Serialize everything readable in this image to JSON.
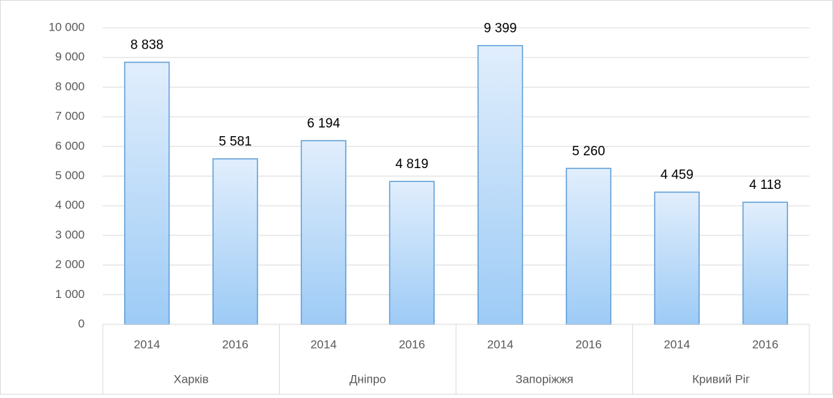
{
  "chart_data": {
    "type": "bar",
    "categories": [
      "2014",
      "2016",
      "2014",
      "2016",
      "2014",
      "2016",
      "2014",
      "2016"
    ],
    "groups": [
      "Харків",
      "Дніпро",
      "Запоріжжя",
      "Кривий Ріг"
    ],
    "values": [
      8838,
      5581,
      6194,
      4819,
      9399,
      5260,
      4459,
      4118
    ],
    "value_labels": [
      "8 838",
      "5 581",
      "6 194",
      "4 819",
      "9 399",
      "5 260",
      "4 459",
      "4 118"
    ],
    "color": "#5b9bd5",
    "ylim": [
      0,
      10000
    ],
    "yticks": [
      0,
      {
        "value": 1000,
        "label": "1 000"
      },
      {
        "value": 2000,
        "label": "2 000"
      },
      {
        "value": 3000,
        "label": "3 000"
      },
      {
        "value": 4000,
        "label": "4 000"
      },
      {
        "value": 5000,
        "label": "5 000"
      },
      {
        "value": 6000,
        "label": "6 000"
      },
      {
        "value": 7000,
        "label": "7 000"
      },
      {
        "value": 8000,
        "label": "8 000"
      },
      {
        "value": 9000,
        "label": "9 000"
      },
      {
        "value": 10000,
        "label": "10 000"
      }
    ],
    "grid": true
  }
}
